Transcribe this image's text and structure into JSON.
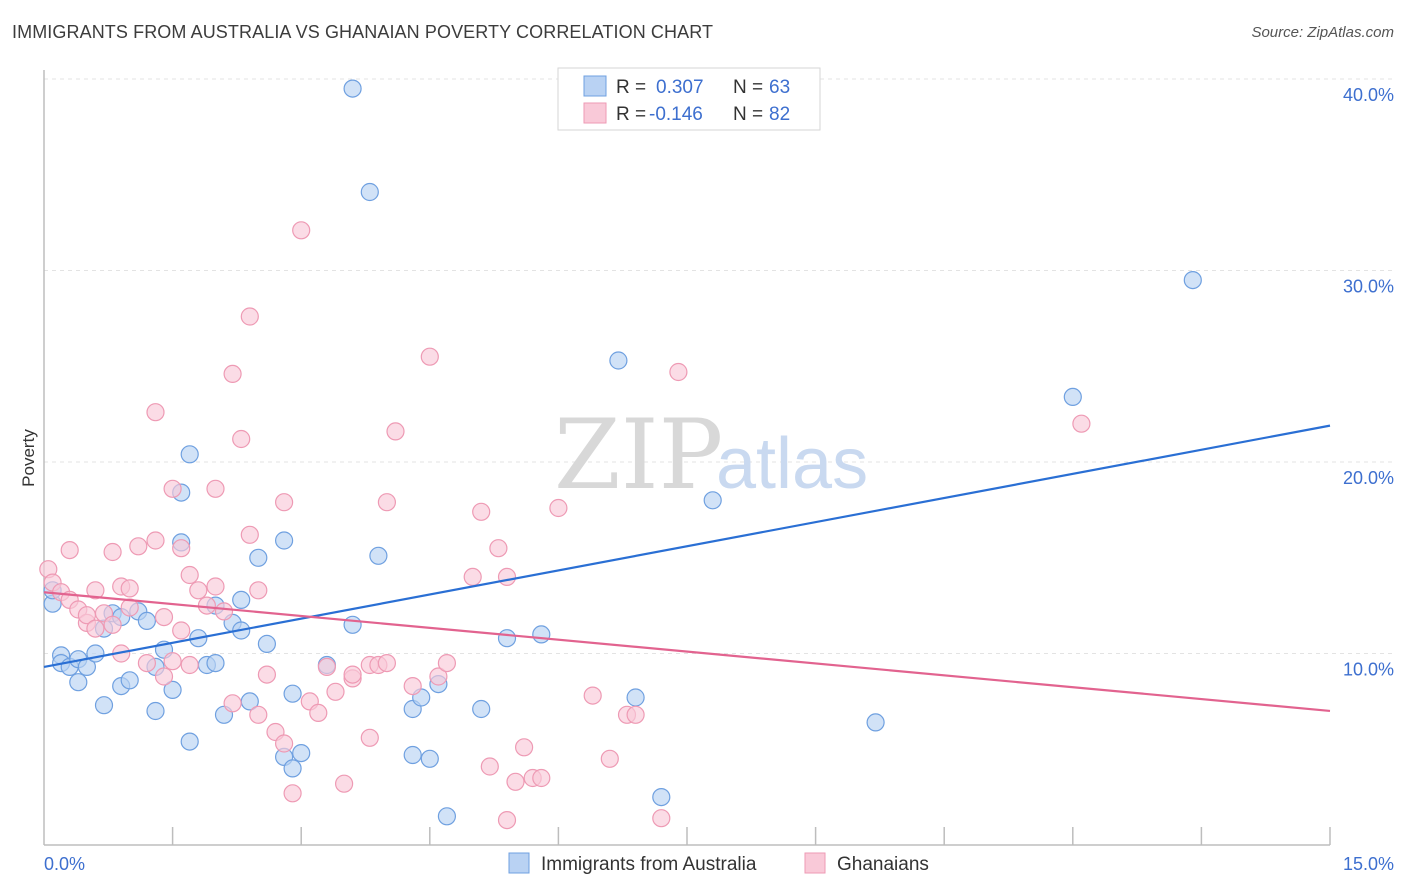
{
  "header": {
    "title": "IMMIGRANTS FROM AUSTRALIA VS GHANAIAN POVERTY CORRELATION CHART",
    "source": "Source: ZipAtlas.com"
  },
  "watermark": {
    "zip": "ZIP",
    "atlas": "atlas"
  },
  "legend_stats": [
    {
      "r_label": "R =",
      "r_value": "0.307",
      "n_label": "N =",
      "n_value": "63",
      "color": "#a9c8f0"
    },
    {
      "r_label": "R =",
      "r_value": "-0.146",
      "n_label": "N =",
      "n_value": "82",
      "color": "#f6b8cb"
    }
  ],
  "chart_data": {
    "type": "scatter",
    "title": "IMMIGRANTS FROM AUSTRALIA VS GHANAIAN POVERTY CORRELATION CHART",
    "xlabel": "",
    "ylabel": "Poverty",
    "xlim": [
      0,
      15
    ],
    "ylim": [
      0,
      40
    ],
    "x_tick_labels": [
      "0.0%",
      "15.0%"
    ],
    "y_ticks": [
      10,
      20,
      30,
      40
    ],
    "y_tick_labels": [
      "10.0%",
      "20.0%",
      "30.0%",
      "40.0%"
    ],
    "grid": true,
    "legend_position": "top-center",
    "series": [
      {
        "name": "Immigrants from Australia",
        "color": "#6fa0e0",
        "fill": "#b9d2f3",
        "line_color": "#2a6fd4",
        "trend": {
          "x": [
            0,
            15
          ],
          "y": [
            9.3,
            21.9
          ]
        },
        "points": [
          [
            0.1,
            12.6
          ],
          [
            0.1,
            13.3
          ],
          [
            0.2,
            9.9
          ],
          [
            0.2,
            9.5
          ],
          [
            0.3,
            9.3
          ],
          [
            0.4,
            8.5
          ],
          [
            0.4,
            9.7
          ],
          [
            0.5,
            9.3
          ],
          [
            0.6,
            10.0
          ],
          [
            0.7,
            7.3
          ],
          [
            0.7,
            11.3
          ],
          [
            0.8,
            12.1
          ],
          [
            0.9,
            8.3
          ],
          [
            0.9,
            11.9
          ],
          [
            1.0,
            8.6
          ],
          [
            1.1,
            12.2
          ],
          [
            1.2,
            11.7
          ],
          [
            1.3,
            9.3
          ],
          [
            1.3,
            7.0
          ],
          [
            1.4,
            10.2
          ],
          [
            1.5,
            8.1
          ],
          [
            1.6,
            15.8
          ],
          [
            1.6,
            18.4
          ],
          [
            1.7,
            20.4
          ],
          [
            1.7,
            5.4
          ],
          [
            1.8,
            10.8
          ],
          [
            1.9,
            9.4
          ],
          [
            2.0,
            9.5
          ],
          [
            2.0,
            12.5
          ],
          [
            2.1,
            6.8
          ],
          [
            2.2,
            11.6
          ],
          [
            2.3,
            12.8
          ],
          [
            2.3,
            11.2
          ],
          [
            2.4,
            7.5
          ],
          [
            2.5,
            15.0
          ],
          [
            2.6,
            10.5
          ],
          [
            2.8,
            15.9
          ],
          [
            2.8,
            4.6
          ],
          [
            2.9,
            4.0
          ],
          [
            2.9,
            7.9
          ],
          [
            3.0,
            4.8
          ],
          [
            3.3,
            9.4
          ],
          [
            3.6,
            11.5
          ],
          [
            3.6,
            39.5
          ],
          [
            3.8,
            34.1
          ],
          [
            3.9,
            15.1
          ],
          [
            4.3,
            4.7
          ],
          [
            4.3,
            7.1
          ],
          [
            4.4,
            7.7
          ],
          [
            4.5,
            4.5
          ],
          [
            4.6,
            8.4
          ],
          [
            4.7,
            1.5
          ],
          [
            5.1,
            7.1
          ],
          [
            5.4,
            10.8
          ],
          [
            5.8,
            11.0
          ],
          [
            6.1,
            38.7
          ],
          [
            6.7,
            25.3
          ],
          [
            6.9,
            7.7
          ],
          [
            7.2,
            2.5
          ],
          [
            7.8,
            18.0
          ],
          [
            9.7,
            6.4
          ],
          [
            12.0,
            23.4
          ],
          [
            13.4,
            29.5
          ]
        ]
      },
      {
        "name": "Ghanaians",
        "color": "#ee9ab4",
        "fill": "#f9c9d8",
        "line_color": "#e2638f",
        "trend": {
          "x": [
            0,
            15
          ],
          "y": [
            13.2,
            7.0
          ]
        },
        "points": [
          [
            0.05,
            14.4
          ],
          [
            0.1,
            13.7
          ],
          [
            0.2,
            13.2
          ],
          [
            0.3,
            12.8
          ],
          [
            0.3,
            15.4
          ],
          [
            0.4,
            12.3
          ],
          [
            0.5,
            11.6
          ],
          [
            0.5,
            12.0
          ],
          [
            0.6,
            11.3
          ],
          [
            0.6,
            13.3
          ],
          [
            0.7,
            12.1
          ],
          [
            0.8,
            15.3
          ],
          [
            0.8,
            11.5
          ],
          [
            0.9,
            13.5
          ],
          [
            0.9,
            10.0
          ],
          [
            1.0,
            12.4
          ],
          [
            1.0,
            13.4
          ],
          [
            1.1,
            15.6
          ],
          [
            1.2,
            9.5
          ],
          [
            1.3,
            15.9
          ],
          [
            1.3,
            22.6
          ],
          [
            1.4,
            8.8
          ],
          [
            1.4,
            11.9
          ],
          [
            1.5,
            18.6
          ],
          [
            1.5,
            9.6
          ],
          [
            1.6,
            15.5
          ],
          [
            1.6,
            11.2
          ],
          [
            1.7,
            9.4
          ],
          [
            1.7,
            14.1
          ],
          [
            1.8,
            13.3
          ],
          [
            1.9,
            12.5
          ],
          [
            2.0,
            13.5
          ],
          [
            2.0,
            18.6
          ],
          [
            2.1,
            12.2
          ],
          [
            2.2,
            24.6
          ],
          [
            2.2,
            7.4
          ],
          [
            2.3,
            21.2
          ],
          [
            2.4,
            27.6
          ],
          [
            2.4,
            16.2
          ],
          [
            2.5,
            13.3
          ],
          [
            2.5,
            6.8
          ],
          [
            2.6,
            8.9
          ],
          [
            2.7,
            5.9
          ],
          [
            2.8,
            5.3
          ],
          [
            2.8,
            17.9
          ],
          [
            2.9,
            2.7
          ],
          [
            3.0,
            32.1
          ],
          [
            3.1,
            7.5
          ],
          [
            3.2,
            6.9
          ],
          [
            3.3,
            9.3
          ],
          [
            3.4,
            8.0
          ],
          [
            3.5,
            3.2
          ],
          [
            3.6,
            8.7
          ],
          [
            3.6,
            8.9
          ],
          [
            3.8,
            5.6
          ],
          [
            3.8,
            9.4
          ],
          [
            3.9,
            9.4
          ],
          [
            4.0,
            9.5
          ],
          [
            4.0,
            17.9
          ],
          [
            4.1,
            21.6
          ],
          [
            4.3,
            8.3
          ],
          [
            4.5,
            25.5
          ],
          [
            4.6,
            8.8
          ],
          [
            4.7,
            9.5
          ],
          [
            5.0,
            14.0
          ],
          [
            5.1,
            17.4
          ],
          [
            5.2,
            4.1
          ],
          [
            5.3,
            15.5
          ],
          [
            5.4,
            1.3
          ],
          [
            5.4,
            14.0
          ],
          [
            5.5,
            3.3
          ],
          [
            5.6,
            5.1
          ],
          [
            5.7,
            3.5
          ],
          [
            5.8,
            3.5
          ],
          [
            6.0,
            17.6
          ],
          [
            6.4,
            7.8
          ],
          [
            6.6,
            4.5
          ],
          [
            6.8,
            6.8
          ],
          [
            6.9,
            6.8
          ],
          [
            7.2,
            1.4
          ],
          [
            7.4,
            24.7
          ],
          [
            12.1,
            22.0
          ]
        ]
      }
    ]
  }
}
